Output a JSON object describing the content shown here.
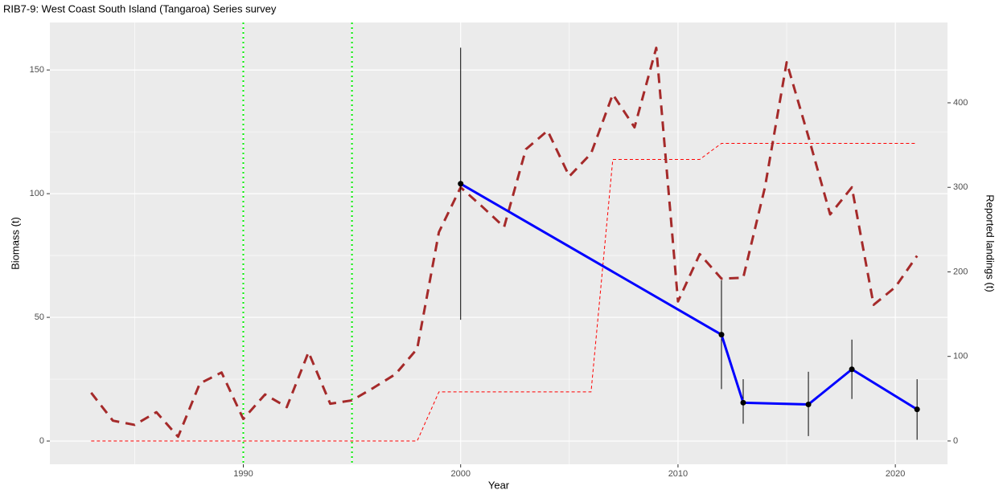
{
  "chart_data": {
    "type": "line",
    "title": "RIB7-9: West Coast South Island (Tangaroa) Series survey",
    "xlabel": "Year",
    "ylabel": "Biomass (t)",
    "y2label": "Reported landings (t)",
    "xlim": [
      1981.1,
      2022.4
    ],
    "xticks": [
      1990,
      2000,
      2010,
      2020
    ],
    "xminor": [
      1985,
      1995,
      2005,
      2015
    ],
    "ylim": [
      -9.4,
      169.2
    ],
    "yticks": [
      0,
      50,
      100,
      150
    ],
    "yminor": [
      25,
      75,
      125
    ],
    "y2lim": [
      -27.6,
      495
    ],
    "y2ticks": [
      0,
      100,
      200,
      300,
      400
    ],
    "grid": true,
    "vlines": [
      1990,
      1995
    ],
    "vline_color": "#00ee00",
    "series": [
      {
        "axis": "y2",
        "color": "#ff0000",
        "style": "thin-dashed",
        "x": [
          1983,
          1984,
          1985,
          1986,
          1987,
          1988,
          1989,
          1990,
          1991,
          1992,
          1993,
          1994,
          1995,
          1996,
          1997,
          1998,
          1999,
          2000,
          2001,
          2002,
          2003,
          2004,
          2005,
          2006,
          2007,
          2008,
          2009,
          2010,
          2011,
          2012,
          2013,
          2014,
          2015,
          2016,
          2017,
          2018,
          2019,
          2020,
          2021
        ],
        "values": [
          0,
          0,
          0,
          0,
          0,
          0,
          0,
          0,
          0,
          0,
          0,
          0,
          0,
          0,
          0,
          0,
          58,
          58,
          58,
          58,
          58,
          58,
          58,
          58,
          333,
          333,
          333,
          333,
          333,
          352,
          352,
          352,
          352,
          352,
          352,
          352,
          352,
          352,
          352
        ]
      },
      {
        "axis": "y2",
        "color": "#a52a2a",
        "style": "thick-dashed",
        "x": [
          1983,
          1984,
          1985,
          1986,
          1987,
          1988,
          1989,
          1990,
          1991,
          1992,
          1993,
          1994,
          1995,
          1996,
          1997,
          1998,
          1999,
          2000,
          2001,
          2002,
          2003,
          2004,
          2005,
          2006,
          2007,
          2008,
          2009,
          2010,
          2011,
          2012,
          2013,
          2014,
          2015,
          2016,
          2017,
          2018,
          2019,
          2020,
          2021
        ],
        "values": [
          57,
          24,
          19,
          34,
          5,
          68,
          81,
          26,
          55,
          40,
          105,
          44,
          48,
          63,
          79,
          109,
          247,
          300,
          277,
          253,
          345,
          367,
          313,
          340,
          410,
          371,
          465,
          165,
          221,
          192,
          193,
          300,
          448,
          360,
          268,
          300,
          161,
          182,
          219
        ]
      },
      {
        "axis": "y",
        "color": "#0000ff",
        "style": "solid",
        "points": true,
        "x": [
          2000,
          2012,
          2013,
          2016,
          2018,
          2021
        ],
        "values": [
          104,
          43,
          15.5,
          14.8,
          29,
          12.8
        ],
        "lower": [
          49,
          21,
          7,
          2,
          17,
          0.5
        ],
        "upper": [
          159,
          65,
          25,
          28,
          41,
          25
        ]
      }
    ]
  }
}
